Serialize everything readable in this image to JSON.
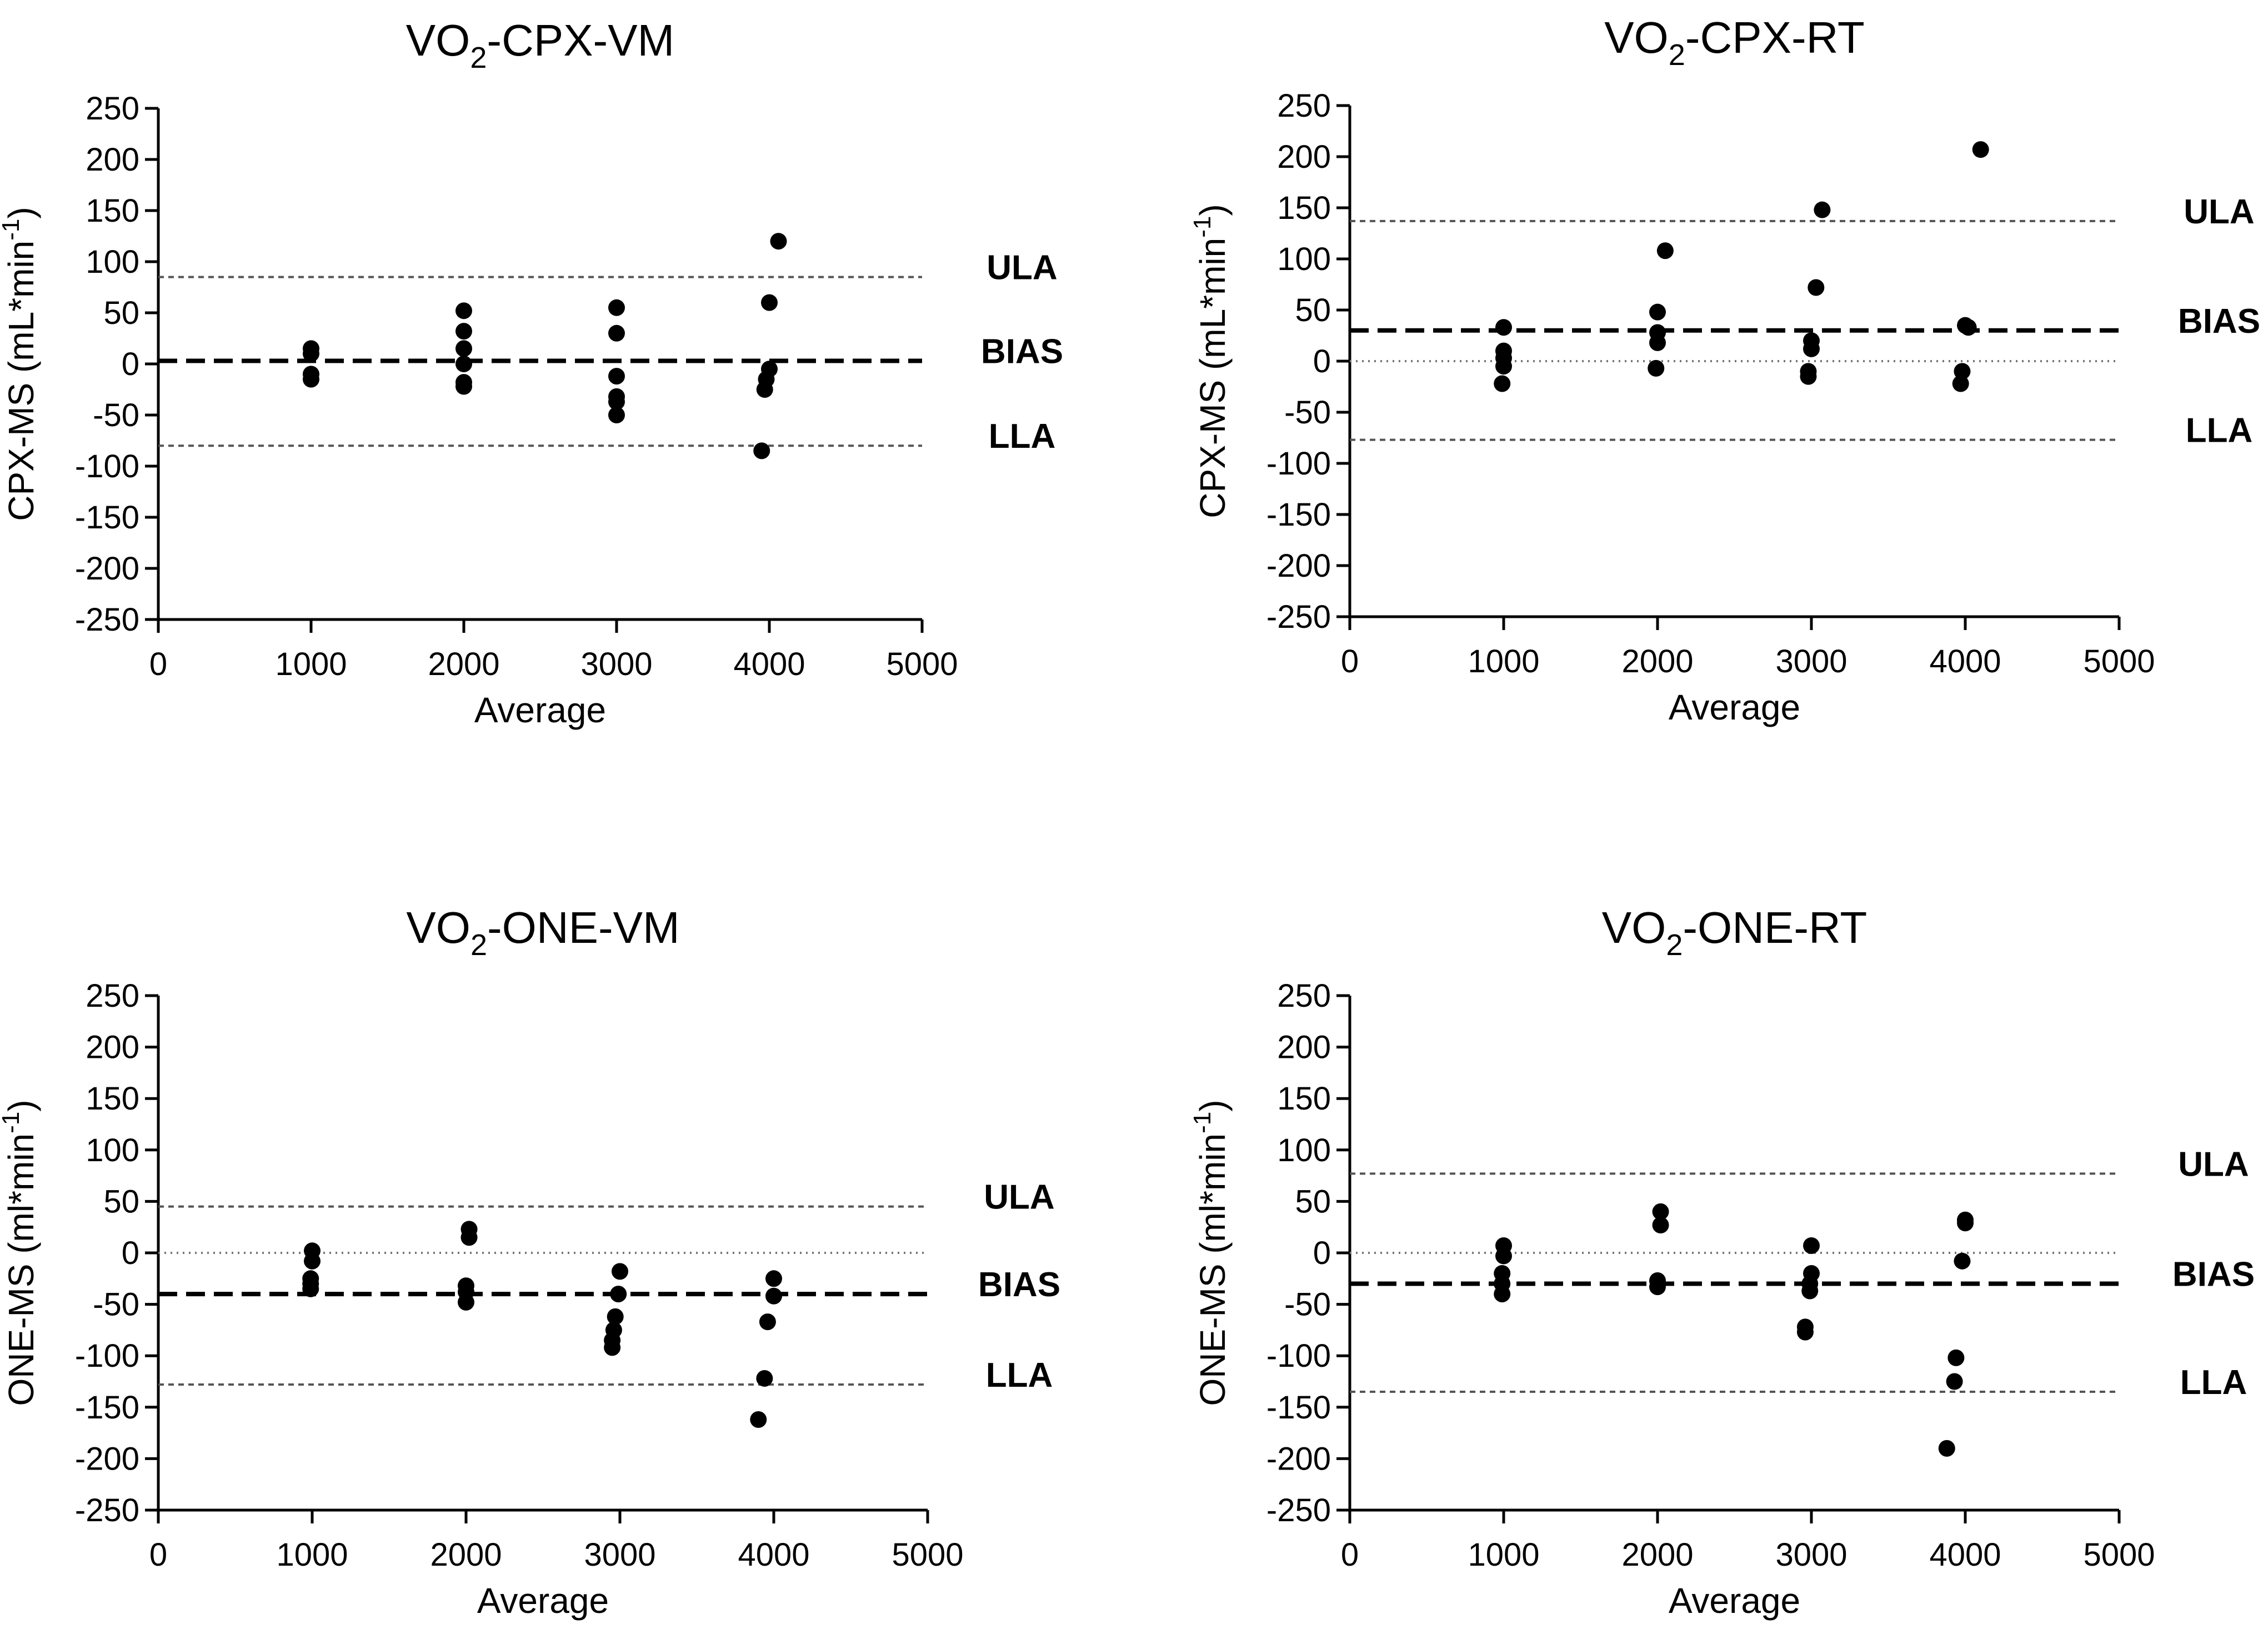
{
  "chart_data": [
    {
      "type": "scatter",
      "title_main": "VO",
      "title_sub": "2",
      "title_rest": "-CPX-VM",
      "xlabel": "Average",
      "ylabel": "CPX-MS (mL*min",
      "ylabel_sup": "-1",
      "ylabel_close": ")",
      "xlim": [
        0,
        5000
      ],
      "ylim": [
        -250,
        250
      ],
      "xticks": [
        0,
        1000,
        2000,
        3000,
        4000,
        5000
      ],
      "yticks": [
        250,
        200,
        150,
        100,
        50,
        0,
        -50,
        -100,
        -150,
        -200,
        -250
      ],
      "zero_line": false,
      "ula": {
        "label": "ULA",
        "value": 85
      },
      "bias": {
        "label": "BIAS",
        "value": 3
      },
      "lla": {
        "label": "LLA",
        "value": -80
      },
      "points": [
        [
          1000,
          15
        ],
        [
          1000,
          10
        ],
        [
          1000,
          -10
        ],
        [
          1000,
          -15
        ],
        [
          2000,
          52
        ],
        [
          2000,
          32
        ],
        [
          2000,
          15
        ],
        [
          2000,
          0
        ],
        [
          2000,
          -18
        ],
        [
          2000,
          -22
        ],
        [
          3000,
          55
        ],
        [
          3000,
          30
        ],
        [
          3000,
          -12
        ],
        [
          3000,
          -32
        ],
        [
          3000,
          -37
        ],
        [
          3000,
          -50
        ],
        [
          3950,
          -85
        ],
        [
          4000,
          60
        ],
        [
          4000,
          -5
        ],
        [
          3980,
          -15
        ],
        [
          3970,
          -25
        ],
        [
          4060,
          120
        ]
      ]
    },
    {
      "type": "scatter",
      "title_main": "VO",
      "title_sub": "2",
      "title_rest": "-CPX-RT",
      "xlabel": "Average",
      "ylabel": "CPX-MS (mL*min",
      "ylabel_sup": "-1",
      "ylabel_close": ")",
      "xlim": [
        0,
        5000
      ],
      "ylim": [
        -250,
        250
      ],
      "xticks": [
        0,
        1000,
        2000,
        3000,
        4000,
        5000
      ],
      "yticks": [
        250,
        200,
        150,
        100,
        50,
        0,
        -50,
        -100,
        -150,
        -200,
        -250
      ],
      "zero_line": true,
      "ula": {
        "label": "ULA",
        "value": 137
      },
      "bias": {
        "label": "BIAS",
        "value": 30
      },
      "lla": {
        "label": "LLA",
        "value": -77
      },
      "points": [
        [
          1000,
          33
        ],
        [
          1000,
          10
        ],
        [
          1000,
          3
        ],
        [
          1000,
          -5
        ],
        [
          990,
          -22
        ],
        [
          2000,
          48
        ],
        [
          2000,
          28
        ],
        [
          2000,
          18
        ],
        [
          1990,
          -7
        ],
        [
          2050,
          108
        ],
        [
          3000,
          20
        ],
        [
          3000,
          12
        ],
        [
          2980,
          -10
        ],
        [
          2980,
          -15
        ],
        [
          3030,
          72
        ],
        [
          3070,
          148
        ],
        [
          4000,
          35
        ],
        [
          4020,
          33
        ],
        [
          3980,
          -10
        ],
        [
          3970,
          -22
        ],
        [
          4100,
          207
        ]
      ]
    },
    {
      "type": "scatter",
      "title_main": "VO",
      "title_sub": "2",
      "title_rest": "-ONE-VM",
      "xlabel": "Average",
      "ylabel": "ONE-MS (ml*min",
      "ylabel_sup": "-1",
      "ylabel_close": ")",
      "xlim": [
        0,
        5000
      ],
      "ylim": [
        -250,
        250
      ],
      "xticks": [
        0,
        1000,
        2000,
        3000,
        4000,
        5000
      ],
      "yticks": [
        250,
        200,
        150,
        100,
        50,
        0,
        -50,
        -100,
        -150,
        -200,
        -250
      ],
      "zero_line": true,
      "ula": {
        "label": "ULA",
        "value": 45
      },
      "bias": {
        "label": "BIAS",
        "value": -40
      },
      "lla": {
        "label": "LLA",
        "value": -128
      },
      "points": [
        [
          1000,
          2
        ],
        [
          1000,
          -8
        ],
        [
          990,
          -25
        ],
        [
          990,
          -30
        ],
        [
          990,
          -35
        ],
        [
          2020,
          23
        ],
        [
          2020,
          15
        ],
        [
          2000,
          -32
        ],
        [
          2000,
          -38
        ],
        [
          2000,
          -48
        ],
        [
          3000,
          -18
        ],
        [
          2990,
          -40
        ],
        [
          2970,
          -62
        ],
        [
          2960,
          -75
        ],
        [
          2950,
          -85
        ],
        [
          2950,
          -92
        ],
        [
          4000,
          -25
        ],
        [
          4000,
          -42
        ],
        [
          3960,
          -67
        ],
        [
          3940,
          -122
        ],
        [
          3900,
          -162
        ]
      ]
    },
    {
      "type": "scatter",
      "title_main": "VO",
      "title_sub": "2",
      "title_rest": "-ONE-RT",
      "xlabel": "Average",
      "ylabel": "ONE-MS (ml*min",
      "ylabel_sup": "-1",
      "ylabel_close": ")",
      "xlim": [
        0,
        5000
      ],
      "ylim": [
        -250,
        250
      ],
      "xticks": [
        0,
        1000,
        2000,
        3000,
        4000,
        5000
      ],
      "yticks": [
        250,
        200,
        150,
        100,
        50,
        0,
        -50,
        -100,
        -150,
        -200,
        -250
      ],
      "zero_line": true,
      "ula": {
        "label": "ULA",
        "value": 77
      },
      "bias": {
        "label": "BIAS",
        "value": -30
      },
      "lla": {
        "label": "LLA",
        "value": -135
      },
      "points": [
        [
          1000,
          7
        ],
        [
          1000,
          -3
        ],
        [
          990,
          -20
        ],
        [
          990,
          -30
        ],
        [
          990,
          -40
        ],
        [
          2020,
          40
        ],
        [
          2020,
          27
        ],
        [
          2000,
          -27
        ],
        [
          2000,
          -33
        ],
        [
          3000,
          7
        ],
        [
          3000,
          -20
        ],
        [
          2990,
          -30
        ],
        [
          2990,
          -37
        ],
        [
          2960,
          -72
        ],
        [
          2960,
          -77
        ],
        [
          4000,
          32
        ],
        [
          4000,
          29
        ],
        [
          3980,
          -8
        ],
        [
          3940,
          -102
        ],
        [
          3930,
          -125
        ],
        [
          3880,
          -190
        ]
      ]
    }
  ]
}
